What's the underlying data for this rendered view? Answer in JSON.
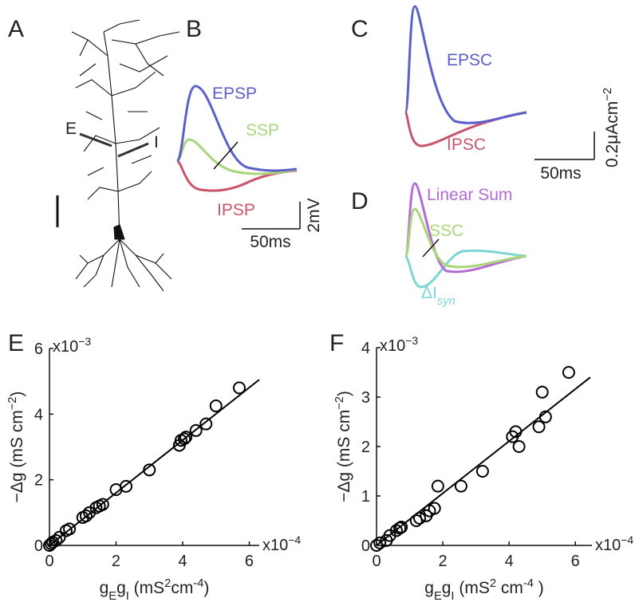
{
  "panel_letters": [
    "A",
    "B",
    "C",
    "D",
    "E",
    "F"
  ],
  "panel_a": {
    "labels": [
      "E",
      "I"
    ]
  },
  "panel_b": {
    "epsp": "EPSP",
    "ssp": "SSP",
    "ipsp": "IPSP",
    "scale_y": "2mV",
    "scale_x": "50ms"
  },
  "panel_c": {
    "epsc": "EPSC",
    "ipsc": "IPSC",
    "scale_x": "50ms",
    "scale_y": [
      {
        "text": "0.2μAcm"
      },
      {
        "text": "−2",
        "style": "sup"
      }
    ]
  },
  "panel_d": {
    "linear_sum": "Linear Sum",
    "ssc": "SSC",
    "delta_i": [
      {
        "text": "ΔI"
      },
      {
        "text": "syn",
        "style": "sub-italic"
      }
    ]
  },
  "chart_data": [
    {
      "type": "scatter",
      "x_label": [
        {
          "text": "g"
        },
        {
          "text": "E",
          "style": "sub"
        },
        {
          "text": "g"
        },
        {
          "text": "I",
          "style": "sub"
        },
        {
          "text": " (mS"
        },
        {
          "text": "2",
          "style": "sup"
        },
        {
          "text": "cm"
        },
        {
          "text": "-4",
          "style": "sup"
        },
        {
          "text": ")"
        }
      ],
      "y_label": [
        {
          "text": "−Δg (mS cm"
        },
        {
          "text": "−2",
          "style": "sup"
        },
        {
          "text": ")"
        }
      ],
      "x_exponent": [
        {
          "text": "x10"
        },
        {
          "text": "−4",
          "style": "sup"
        }
      ],
      "y_exponent": [
        {
          "text": "x10"
        },
        {
          "text": "−3",
          "style": "sup"
        }
      ],
      "x": [
        0,
        0.05,
        0.1,
        0.2,
        0.3,
        0.5,
        0.6,
        1,
        1.1,
        1.2,
        1.4,
        1.5,
        1.6,
        2,
        2.3,
        3,
        3.9,
        3.95,
        4.05,
        4.1,
        4.4,
        4.7,
        5,
        5.7
      ],
      "y": [
        0,
        0.05,
        0.1,
        0.15,
        0.25,
        0.45,
        0.5,
        0.85,
        0.9,
        1.0,
        1.15,
        1.2,
        1.25,
        1.7,
        1.8,
        2.3,
        3.05,
        3.2,
        3.25,
        3.3,
        3.5,
        3.7,
        4.25,
        4.8
      ],
      "fit_line": {
        "x": [
          0,
          6.3
        ],
        "y": [
          0,
          5.05
        ]
      },
      "color": "#000000",
      "xlim": [
        0,
        6.3
      ],
      "ylim": [
        0,
        6
      ],
      "xticks": [
        0,
        2,
        4,
        6
      ],
      "yticks": [
        0,
        2,
        4,
        6
      ]
    },
    {
      "type": "scatter",
      "x_label": [
        {
          "text": "g"
        },
        {
          "text": "E",
          "style": "sub"
        },
        {
          "text": "g"
        },
        {
          "text": "I",
          "style": "sub"
        },
        {
          "text": " (mS"
        },
        {
          "text": "2",
          "style": "sup"
        },
        {
          "text": " cm"
        },
        {
          "text": "-4",
          "style": "sup"
        },
        {
          "text": " )"
        }
      ],
      "y_label": [
        {
          "text": "−Δg (mS cm"
        },
        {
          "text": "−2",
          "style": "sup"
        },
        {
          "text": ")"
        }
      ],
      "x_exponent": [
        {
          "text": "x10"
        },
        {
          "text": "−4",
          "style": "sup"
        }
      ],
      "y_exponent": [
        {
          "text": "x10"
        },
        {
          "text": "−3",
          "style": "sup"
        }
      ],
      "x": [
        0,
        0.1,
        0.3,
        0.4,
        0.6,
        0.7,
        0.75,
        1.2,
        1.3,
        1.5,
        1.6,
        1.75,
        1.85,
        2.55,
        3.2,
        4.1,
        4.2,
        4.3,
        4.9,
        5.0,
        5.1,
        5.8
      ],
      "y": [
        0,
        0.05,
        0.1,
        0.2,
        0.3,
        0.35,
        0.37,
        0.5,
        0.55,
        0.6,
        0.7,
        0.75,
        1.2,
        1.2,
        1.5,
        2.2,
        2.3,
        2.0,
        2.4,
        3.1,
        2.6,
        3.5
      ],
      "fit_line": {
        "x": [
          0,
          6.45
        ],
        "y": [
          0,
          3.4
        ]
      },
      "color": "#000000",
      "xlim": [
        0,
        6.5
      ],
      "ylim": [
        0,
        4
      ],
      "xticks": [
        0,
        2,
        4,
        6
      ],
      "yticks": [
        0,
        1,
        2,
        3,
        4
      ]
    }
  ]
}
